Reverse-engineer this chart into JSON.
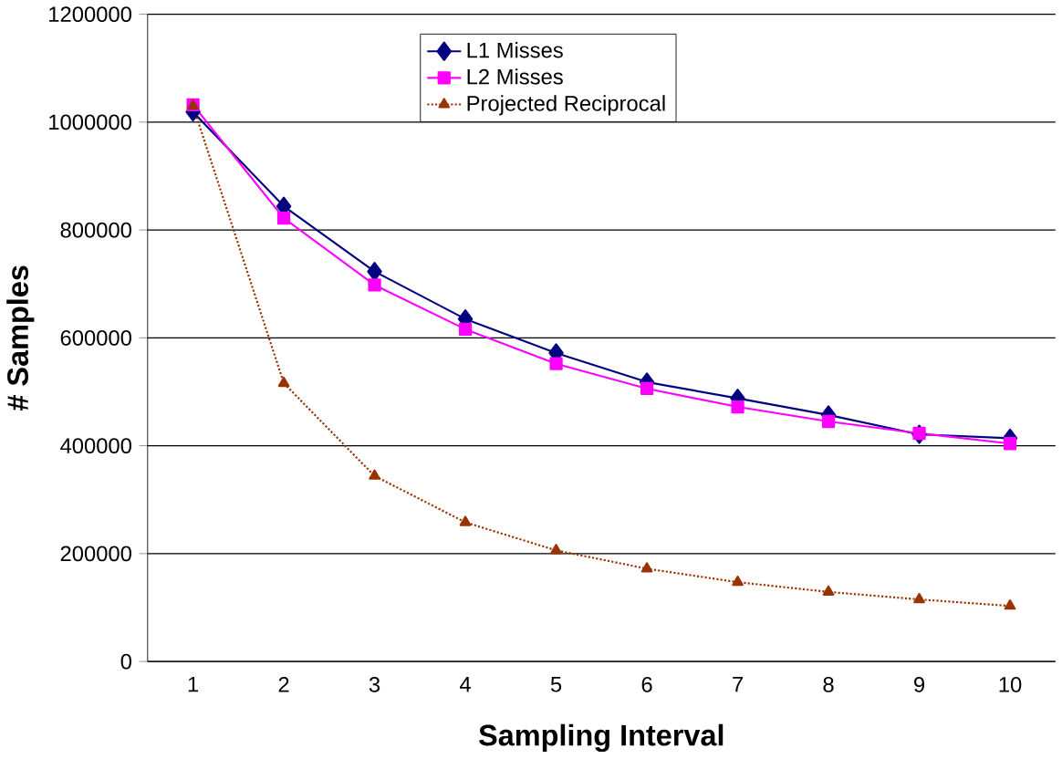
{
  "chart_data": {
    "type": "line",
    "xlabel": "Sampling Interval",
    "ylabel": "# Samples",
    "categories": [
      "1",
      "2",
      "3",
      "4",
      "5",
      "6",
      "7",
      "8",
      "9",
      "10"
    ],
    "series": [
      {
        "name": "L1 Misses",
        "color": "#000080",
        "marker": "diamond",
        "line_style": "solid",
        "values": [
          1019000,
          844000,
          723000,
          635000,
          572000,
          518000,
          488000,
          457000,
          421000,
          414000
        ]
      },
      {
        "name": "L2 Misses",
        "color": "#ff00ff",
        "marker": "square",
        "line_style": "solid",
        "values": [
          1032000,
          822000,
          698000,
          616000,
          552000,
          506000,
          472000,
          445000,
          423000,
          404000
        ]
      },
      {
        "name": "Projected Reciprocal",
        "color": "#993300",
        "marker": "triangle",
        "line_style": "dotted",
        "values": [
          1030000,
          516000,
          344000,
          258000,
          206000,
          172000,
          147000,
          129000,
          115000,
          103000
        ]
      }
    ],
    "ylim": [
      0,
      1200000
    ],
    "yticks": [
      0,
      200000,
      400000,
      600000,
      800000,
      1000000,
      1200000
    ],
    "grid": "y",
    "legend": "top"
  }
}
